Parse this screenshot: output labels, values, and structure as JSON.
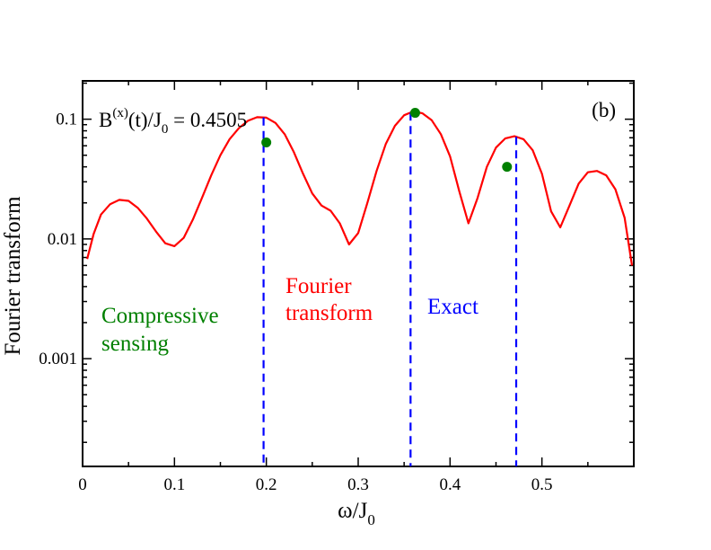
{
  "chart_data": {
    "type": "line",
    "title": "",
    "panel_label": "(b)",
    "field_label": {
      "main": "B",
      "sup": "(x)",
      "mid": "(t)/J",
      "sub": "0",
      "value": " = 0.4505"
    },
    "xlabel": {
      "main": "ω/J",
      "sub": "0"
    },
    "ylabel": "Fourier transform",
    "xlim": [
      0.0,
      0.6
    ],
    "ylog": true,
    "ylim_log10": [
      -3.9,
      -0.68
    ],
    "x_ticks": [
      0.0,
      0.1,
      0.2,
      0.3,
      0.4,
      0.5
    ],
    "x_tick_labels": [
      "0",
      "0.1",
      "0.2",
      "0.3",
      "0.4",
      "0.5"
    ],
    "y_ticks_log10": [
      -3,
      -2,
      -1
    ],
    "y_tick_labels": [
      "0.001",
      "0.01",
      "0.1"
    ],
    "colors": {
      "fourier": "#ff0000",
      "exact": "#0000ff",
      "compressive": "#008000"
    },
    "series": [
      {
        "name": "Fourier transform",
        "style": "line",
        "x": [
          0.005,
          0.012,
          0.02,
          0.03,
          0.04,
          0.05,
          0.06,
          0.07,
          0.08,
          0.09,
          0.1,
          0.11,
          0.12,
          0.13,
          0.14,
          0.15,
          0.16,
          0.17,
          0.18,
          0.19,
          0.2,
          0.21,
          0.22,
          0.23,
          0.24,
          0.25,
          0.26,
          0.27,
          0.28,
          0.29,
          0.3,
          0.31,
          0.32,
          0.33,
          0.34,
          0.35,
          0.36,
          0.37,
          0.38,
          0.39,
          0.4,
          0.41,
          0.42,
          0.43,
          0.44,
          0.45,
          0.46,
          0.47,
          0.48,
          0.49,
          0.5,
          0.51,
          0.52,
          0.53,
          0.54,
          0.55,
          0.56,
          0.57,
          0.58,
          0.59,
          0.598
        ],
        "values": [
          0.0068,
          0.011,
          0.016,
          0.0195,
          0.0212,
          0.0208,
          0.0182,
          0.0148,
          0.0115,
          0.0092,
          0.0087,
          0.0102,
          0.0145,
          0.022,
          0.034,
          0.05,
          0.068,
          0.084,
          0.097,
          0.104,
          0.103,
          0.093,
          0.075,
          0.053,
          0.035,
          0.024,
          0.019,
          0.0172,
          0.0135,
          0.009,
          0.0112,
          0.02,
          0.037,
          0.062,
          0.088,
          0.108,
          0.116,
          0.112,
          0.098,
          0.075,
          0.049,
          0.025,
          0.0135,
          0.022,
          0.04,
          0.058,
          0.069,
          0.072,
          0.068,
          0.055,
          0.035,
          0.017,
          0.0125,
          0.019,
          0.029,
          0.036,
          0.037,
          0.034,
          0.026,
          0.015,
          0.006
        ]
      },
      {
        "name": "Exact",
        "style": "dashed-vertical",
        "x": [
          0.197,
          0.357,
          0.472
        ]
      },
      {
        "name": "Compressive sensing",
        "style": "points",
        "x": [
          0.2,
          0.362,
          0.462
        ],
        "values": [
          0.064,
          0.113,
          0.04
        ]
      }
    ],
    "annotations": {
      "fourier": [
        "Fourier",
        "transform"
      ],
      "exact": "Exact",
      "compressive": [
        "Compressive",
        "sensing"
      ]
    }
  }
}
